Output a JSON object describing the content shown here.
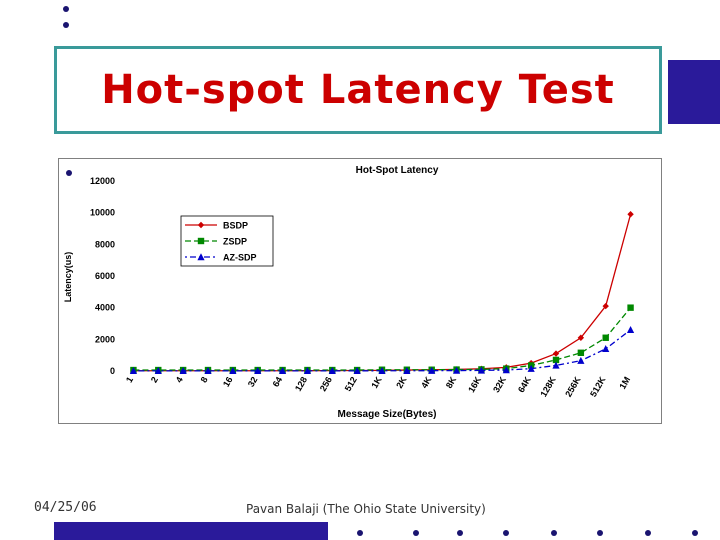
{
  "slide": {
    "title": "Hot-spot Latency Test",
    "date": "04/25/06",
    "author": "Pavan Balaji (The Ohio State University)"
  },
  "colors": {
    "title": "#cc0000",
    "frame": "#3a9a9a",
    "accent": "#2a1a9a"
  },
  "chart_data": {
    "type": "line",
    "title": "Hot-Spot Latency",
    "xlabel": "Message Size(Bytes)",
    "ylabel": "Latency(us)",
    "ylim": [
      0,
      12000
    ],
    "yticks": [
      0,
      2000,
      4000,
      6000,
      8000,
      10000,
      12000
    ],
    "legend_position": "top-left",
    "categories": [
      "1",
      "2",
      "4",
      "8",
      "16",
      "32",
      "64",
      "128",
      "256",
      "512",
      "1K",
      "2K",
      "4K",
      "8K",
      "16K",
      "32K",
      "64K",
      "128K",
      "256K",
      "512K",
      "1M"
    ],
    "series": [
      {
        "name": "BSDP",
        "color": "#cc0000",
        "marker": "diamond",
        "dash": "solid",
        "values": [
          15,
          15,
          15,
          15,
          15,
          15,
          18,
          20,
          25,
          30,
          40,
          60,
          80,
          100,
          140,
          230,
          500,
          1100,
          2100,
          4100,
          9900
        ]
      },
      {
        "name": "ZSDP",
        "color": "#008800",
        "marker": "square",
        "dash": "dashed",
        "values": [
          60,
          60,
          60,
          60,
          60,
          60,
          60,
          60,
          60,
          60,
          80,
          80,
          80,
          90,
          100,
          150,
          350,
          700,
          1150,
          2100,
          4000
        ]
      },
      {
        "name": "AZ-SDP",
        "color": "#0000cc",
        "marker": "triangle",
        "dash": "dashdot",
        "values": [
          10,
          10,
          10,
          10,
          10,
          10,
          10,
          10,
          10,
          10,
          15,
          15,
          20,
          25,
          40,
          60,
          150,
          350,
          650,
          1400,
          2600
        ]
      }
    ]
  }
}
